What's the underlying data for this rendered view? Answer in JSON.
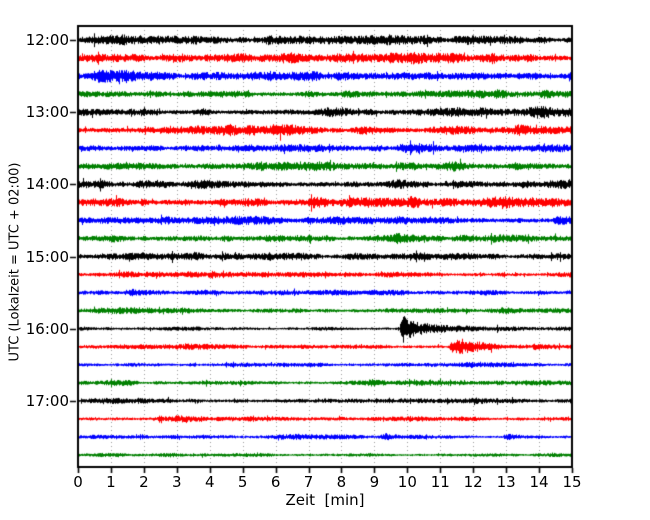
{
  "figure": {
    "background": "#ffffff",
    "xlabel": "Zeit  [min]",
    "ylabel": "UTC (Lokalzeit = UTC + 02:00)",
    "x_ticks": [
      "0",
      "1",
      "2",
      "3",
      "4",
      "5",
      "6",
      "7",
      "8",
      "9",
      "10",
      "11",
      "12",
      "13",
      "14",
      "15"
    ],
    "y_ticks": [
      {
        "label": "12:00",
        "row": 0
      },
      {
        "label": "13:00",
        "row": 4
      },
      {
        "label": "14:00",
        "row": 8
      },
      {
        "label": "15:00",
        "row": 12
      },
      {
        "label": "16:00",
        "row": 16
      },
      {
        "label": "17:00",
        "row": 20
      }
    ],
    "grid": {
      "color": "#999999",
      "style": "dotted",
      "minutes": [
        1,
        2,
        3,
        4,
        5,
        6,
        7,
        8,
        9,
        10,
        11,
        12,
        13,
        14
      ]
    },
    "spine_color": "#000000"
  },
  "chart_data": {
    "type": "line",
    "subtype": "seismogram-helicorder-dayplot",
    "title": "",
    "xlabel": "Zeit  [min]",
    "ylabel": "UTC (Lokalzeit = UTC + 02:00)",
    "xlim": [
      0,
      15
    ],
    "x_tick_interval_min": 1,
    "row_interval_min": 15,
    "rows_start_utc": "12:00",
    "rows_end_utc": "17:45",
    "grid": "vertical dotted lines every 1 minute",
    "legend_position": "none",
    "color_cycle": [
      "#000000",
      "#ff0000",
      "#0000ff",
      "#008000"
    ],
    "note": "24 continuous noise traces, 15 min per line; strongest seismic event on the 16:00 UTC line at ~9.8 min, secondary burst on the 16:15 line at ~11.4 min, small bursts on the 17:30 line at ~9.3 and ~13.0 min",
    "traces": [
      {
        "utc": "12:00",
        "color": "#000000",
        "amp": 2.6,
        "events": []
      },
      {
        "utc": "12:15",
        "color": "#ff0000",
        "amp": 2.6,
        "events": [
          {
            "t": 0.3,
            "amp": 1.5,
            "rise": 0.2,
            "decay": 0.5
          }
        ]
      },
      {
        "utc": "12:30",
        "color": "#0000ff",
        "amp": 2.4,
        "events": [
          {
            "t": 0.55,
            "amp": 2.2,
            "rise": 0.15,
            "decay": 0.5
          },
          {
            "t": 8.0,
            "amp": 1.2,
            "rise": 0.3,
            "decay": 0.6
          }
        ]
      },
      {
        "utc": "12:45",
        "color": "#008000",
        "amp": 2.1,
        "events": [
          {
            "t": 7.0,
            "amp": 1.5,
            "rise": 0.25,
            "decay": 0.5
          },
          {
            "t": 14.15,
            "amp": 2.4,
            "rise": 0.2,
            "decay": 0.6
          }
        ]
      },
      {
        "utc": "13:00",
        "color": "#000000",
        "amp": 2.6,
        "events": [
          {
            "t": 13.9,
            "amp": 1.2,
            "rise": 0.3,
            "decay": 0.5
          }
        ]
      },
      {
        "utc": "13:15",
        "color": "#ff0000",
        "amp": 2.6,
        "events": [
          {
            "t": 13.4,
            "amp": 1.6,
            "rise": 0.2,
            "decay": 0.5
          }
        ]
      },
      {
        "utc": "13:30",
        "color": "#0000ff",
        "amp": 2.3,
        "events": [
          {
            "t": 9.9,
            "amp": 1.8,
            "rise": 0.4,
            "decay": 0.8
          }
        ]
      },
      {
        "utc": "13:45",
        "color": "#008000",
        "amp": 2.0,
        "events": [
          {
            "t": 11.4,
            "amp": 1.4,
            "rise": 0.4,
            "decay": 0.8
          },
          {
            "t": 13.3,
            "amp": 1.4,
            "rise": 0.3,
            "decay": 0.6
          }
        ]
      },
      {
        "utc": "14:00",
        "color": "#000000",
        "amp": 2.5,
        "events": []
      },
      {
        "utc": "14:15",
        "color": "#ff0000",
        "amp": 2.6,
        "events": [
          {
            "t": 7.2,
            "amp": 1.4,
            "rise": 0.3,
            "decay": 0.6
          },
          {
            "t": 10.1,
            "amp": 1.8,
            "rise": 0.2,
            "decay": 0.5
          }
        ]
      },
      {
        "utc": "14:30",
        "color": "#0000ff",
        "amp": 2.2,
        "events": [
          {
            "t": 7.0,
            "amp": 1.2,
            "rise": 0.3,
            "decay": 0.5
          },
          {
            "t": 14.6,
            "amp": 2.0,
            "rise": 0.2,
            "decay": 0.5
          }
        ]
      },
      {
        "utc": "14:45",
        "color": "#008000",
        "amp": 2.1,
        "events": []
      },
      {
        "utc": "15:00",
        "color": "#000000",
        "amp": 2.2,
        "events": []
      },
      {
        "utc": "15:15",
        "color": "#ff0000",
        "amp": 1.7,
        "events": [
          {
            "t": 4.1,
            "amp": 1.5,
            "rise": 0.2,
            "decay": 0.4
          }
        ]
      },
      {
        "utc": "15:30",
        "color": "#0000ff",
        "amp": 1.7,
        "events": [
          {
            "t": 1.6,
            "amp": 1.7,
            "rise": 0.2,
            "decay": 0.5
          }
        ]
      },
      {
        "utc": "15:45",
        "color": "#008000",
        "amp": 1.5,
        "events": [
          {
            "t": 12.9,
            "amp": 1.0,
            "rise": 0.2,
            "decay": 0.4
          }
        ]
      },
      {
        "utc": "16:00",
        "color": "#000000",
        "amp": 1.4,
        "events": [
          {
            "t": 9.82,
            "amp": 9.0,
            "rise": 0.06,
            "decay": 0.35
          },
          {
            "t": 9.95,
            "amp": 2.2,
            "rise": 0.3,
            "decay": 2.2
          }
        ]
      },
      {
        "utc": "16:15",
        "color": "#ff0000",
        "amp": 1.4,
        "events": [
          {
            "t": 11.35,
            "amp": 4.2,
            "rise": 0.1,
            "decay": 0.5
          },
          {
            "t": 11.6,
            "amp": 1.4,
            "rise": 0.3,
            "decay": 1.8
          },
          {
            "t": 13.85,
            "amp": 1.8,
            "rise": 0.08,
            "decay": 0.3
          }
        ]
      },
      {
        "utc": "16:30",
        "color": "#0000ff",
        "amp": 1.4,
        "events": [
          {
            "t": 11.9,
            "amp": 0.9,
            "rise": 0.2,
            "decay": 0.4
          }
        ]
      },
      {
        "utc": "16:45",
        "color": "#008000",
        "amp": 1.5,
        "events": [
          {
            "t": 8.9,
            "amp": 0.8,
            "rise": 0.2,
            "decay": 0.4
          }
        ]
      },
      {
        "utc": "17:00",
        "color": "#000000",
        "amp": 1.5,
        "events": []
      },
      {
        "utc": "17:15",
        "color": "#ff0000",
        "amp": 1.5,
        "events": [
          {
            "t": 3.0,
            "amp": 0.8,
            "rise": 0.3,
            "decay": 0.6
          }
        ]
      },
      {
        "utc": "17:30",
        "color": "#0000ff",
        "amp": 1.2,
        "events": [
          {
            "t": 9.3,
            "amp": 2.0,
            "rise": 0.15,
            "decay": 0.45
          },
          {
            "t": 13.0,
            "amp": 2.2,
            "rise": 0.12,
            "decay": 0.45
          }
        ]
      },
      {
        "utc": "17:45",
        "color": "#008000",
        "amp": 1.2,
        "events": []
      }
    ]
  }
}
